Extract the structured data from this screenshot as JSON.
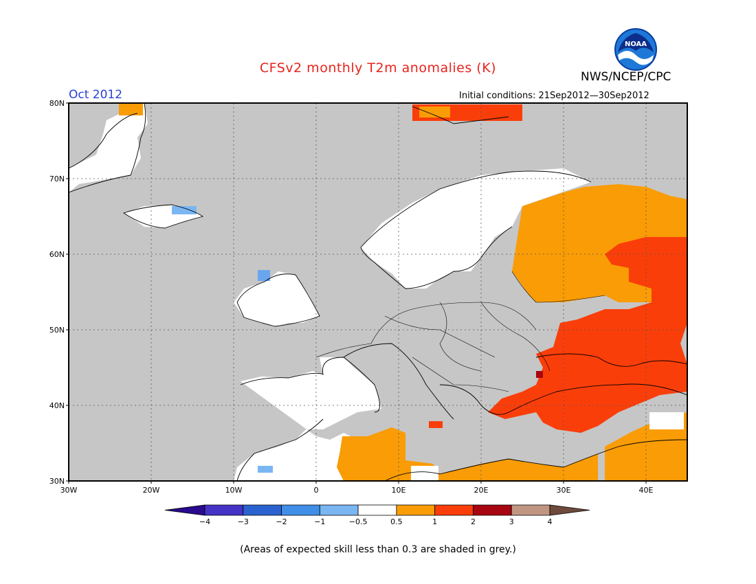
{
  "header": {
    "title": "CFSv2 monthly T2m anomalies (K)",
    "agency": "NWS/NCEP/CPC",
    "logo_text": "NOAA",
    "month": "Oct 2012",
    "initial_conditions": "Initial conditions: 21Sep2012—30Sep2012"
  },
  "map": {
    "region": "Europe",
    "lon_range": [
      -30,
      45
    ],
    "lat_range": [
      30,
      80
    ],
    "lat_labels": [
      "80N",
      "70N",
      "60N",
      "50N",
      "40N",
      "30N"
    ],
    "lon_labels": [
      "30W",
      "20W",
      "10W",
      "0",
      "10E",
      "20E",
      "30E",
      "40E"
    ],
    "grid": "dotted"
  },
  "colorbar": {
    "tick_labels": [
      "−4",
      "−3",
      "−2",
      "−1",
      "−0.5",
      "0.5",
      "1",
      "2",
      "3",
      "4"
    ],
    "colors": [
      "#2a0a8e",
      "#4433c6",
      "#2a63d0",
      "#3f8fe8",
      "#7ab6f2",
      "#ffffff",
      "#f99c05",
      "#fa3e0a",
      "#a7050f",
      "#c09683",
      "#6f4a3c"
    ]
  },
  "footnote": "(Areas of expected skill less than 0.3 are shaded in grey.)"
}
